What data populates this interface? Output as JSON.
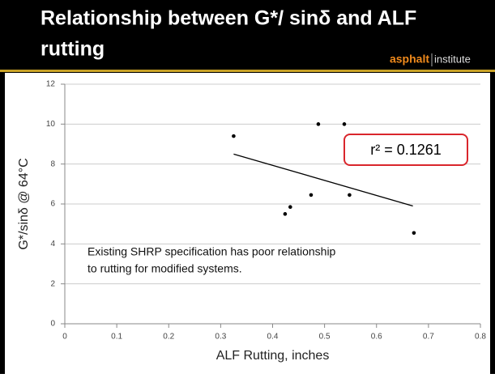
{
  "header": {
    "title_lines": [
      "Relationship between G*/ sinδ and ALF",
      "rutting"
    ],
    "logo": {
      "brand": "asphalt",
      "suffix": "institute"
    }
  },
  "chart_data": {
    "type": "scatter",
    "x_label": "ALF Rutting, inches",
    "y_label": "G*/sinδ @ 64°C",
    "x": [
      0.325,
      0.488,
      0.538,
      0.424,
      0.434,
      0.474,
      0.548,
      0.672
    ],
    "values": [
      9.4,
      10.0,
      10.0,
      5.5,
      5.85,
      6.45,
      6.45,
      4.55
    ],
    "color": "#000000",
    "trendline": {
      "x": [
        0.325,
        0.67
      ],
      "y": [
        8.5,
        5.9
      ]
    },
    "xlim": [
      0,
      0.8
    ],
    "xticks": [
      0,
      0.1,
      0.2,
      0.3,
      0.4,
      0.5,
      0.6,
      0.7,
      0.8
    ],
    "ylim": [
      0,
      12
    ],
    "yticks": [
      0,
      2,
      4,
      6,
      8,
      10,
      12
    ],
    "grid": true,
    "annotations": [
      "r² = 0.1261"
    ],
    "note_lines": [
      "Existing SHRP specification has poor relationship",
      "to rutting for modified systems."
    ]
  }
}
